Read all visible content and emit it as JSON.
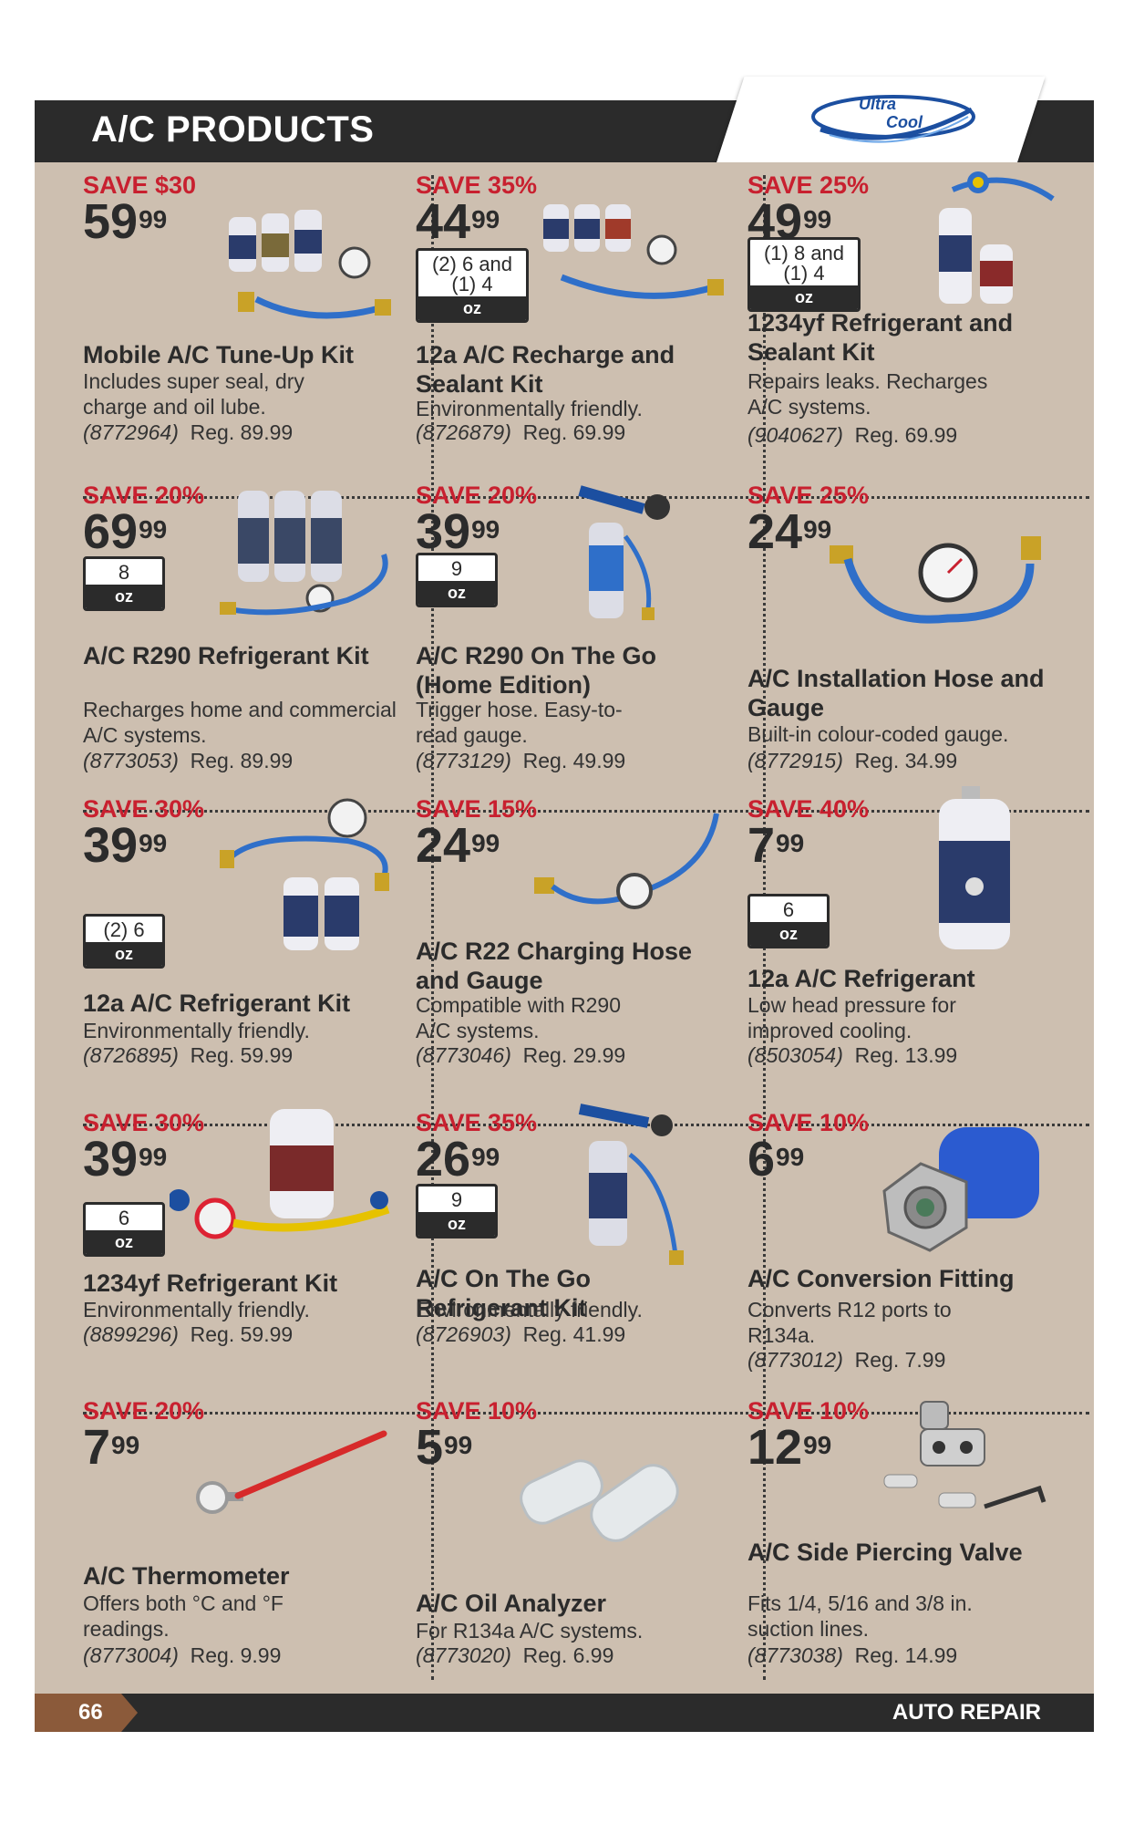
{
  "header": {
    "title": "A/C PRODUCTS",
    "logo_text": "Ultra Cool"
  },
  "footer": {
    "page_number": "66",
    "section": "AUTO REPAIR"
  },
  "colors": {
    "save_red": "#c8202f",
    "header_dark": "#2b2b2b",
    "content_bg": "#cdbfb0",
    "footer_accent": "#8b5a3a"
  },
  "products": [
    {
      "save": "SAVE $30",
      "price_dollars": "59",
      "price_cents": "99",
      "name": "Mobile A/C Tune-Up Kit",
      "desc": "Includes super seal, dry charge and oil lube.",
      "sku": "(8772964)",
      "reg": "Reg. 89.99"
    },
    {
      "save": "SAVE 35%",
      "price_dollars": "44",
      "price_cents": "99",
      "oz_qty": "(2) 6 and (1) 4",
      "oz_unit": "oz",
      "name": "12a A/C Recharge and Sealant Kit",
      "desc": "Environmentally friendly.",
      "sku": "(8726879)",
      "reg": "Reg. 69.99"
    },
    {
      "save": "SAVE 25%",
      "price_dollars": "49",
      "price_cents": "99",
      "oz_qty": "(1) 8 and (1) 4",
      "oz_unit": "oz",
      "name": "1234yf Refrigerant and Sealant Kit",
      "desc": "Repairs leaks. Recharges A/C systems.",
      "sku": "(9040627)",
      "reg": "Reg. 69.99"
    },
    {
      "save": "SAVE 20%",
      "price_dollars": "69",
      "price_cents": "99",
      "oz_qty": "8",
      "oz_unit": "oz",
      "name": "A/C R290 Refrigerant Kit",
      "desc": "Recharges home and commercial A/C systems.",
      "sku": "(8773053)",
      "reg": "Reg. 89.99"
    },
    {
      "save": "SAVE 20%",
      "price_dollars": "39",
      "price_cents": "99",
      "oz_qty": "9",
      "oz_unit": "oz",
      "name": "A/C R290 On The Go (Home Edition)",
      "desc": "Trigger hose. Easy-to-read gauge.",
      "sku": "(8773129)",
      "reg": "Reg. 49.99"
    },
    {
      "save": "SAVE 25%",
      "price_dollars": "24",
      "price_cents": "99",
      "name": "A/C Installation Hose and Gauge",
      "desc": "Built-in colour-coded gauge.",
      "sku": "(8772915)",
      "reg": "Reg. 34.99"
    },
    {
      "save": "SAVE 30%",
      "price_dollars": "39",
      "price_cents": "99",
      "oz_qty": "(2) 6",
      "oz_unit": "oz",
      "name": "12a A/C Refrigerant Kit",
      "desc": "Environmentally friendly.",
      "sku": "(8726895)",
      "reg": "Reg. 59.99"
    },
    {
      "save": "SAVE 15%",
      "price_dollars": "24",
      "price_cents": "99",
      "name": "A/C R22 Charging Hose and Gauge",
      "desc": "Compatible with R290 A/C systems.",
      "sku": "(8773046)",
      "reg": "Reg. 29.99"
    },
    {
      "save": "SAVE 40%",
      "price_dollars": "7",
      "price_cents": "99",
      "oz_qty": "6",
      "oz_unit": "oz",
      "name": "12a A/C Refrigerant",
      "desc": "Low head pressure for improved cooling.",
      "sku": "(8503054)",
      "reg": "Reg. 13.99"
    },
    {
      "save": "SAVE 30%",
      "price_dollars": "39",
      "price_cents": "99",
      "oz_qty": "6",
      "oz_unit": "oz",
      "name": "1234yf Refrigerant Kit",
      "desc": "Environmentally friendly.",
      "sku": "(8899296)",
      "reg": "Reg. 59.99"
    },
    {
      "save": "SAVE 35%",
      "price_dollars": "26",
      "price_cents": "99",
      "oz_qty": "9",
      "oz_unit": "oz",
      "name": "A/C On The Go Refrigerant Kit",
      "desc": "Environmentally friendly.",
      "sku": "(8726903)",
      "reg": "Reg. 41.99"
    },
    {
      "save": "SAVE 10%",
      "price_dollars": "6",
      "price_cents": "99",
      "name": "A/C Conversion Fitting",
      "desc": "Converts R12 ports to R134a.",
      "sku": "(8773012)",
      "reg": "Reg. 7.99"
    },
    {
      "save": "SAVE 20%",
      "price_dollars": "7",
      "price_cents": "99",
      "name": "A/C Thermometer",
      "desc": "Offers both °C and °F readings.",
      "sku": "(8773004)",
      "reg": "Reg. 9.99"
    },
    {
      "save": "SAVE 10%",
      "price_dollars": "5",
      "price_cents": "99",
      "name": "A/C Oil Analyzer",
      "desc": "For R134a A/C systems.",
      "sku": "(8773020)",
      "reg": "Reg. 6.99"
    },
    {
      "save": "SAVE 10%",
      "price_dollars": "12",
      "price_cents": "99",
      "name": "A/C Side Piercing Valve",
      "desc": "Fits 1/4, 5/16 and 3/8 in. suction lines.",
      "sku": "(8773038)",
      "reg": "Reg. 14.99"
    }
  ]
}
